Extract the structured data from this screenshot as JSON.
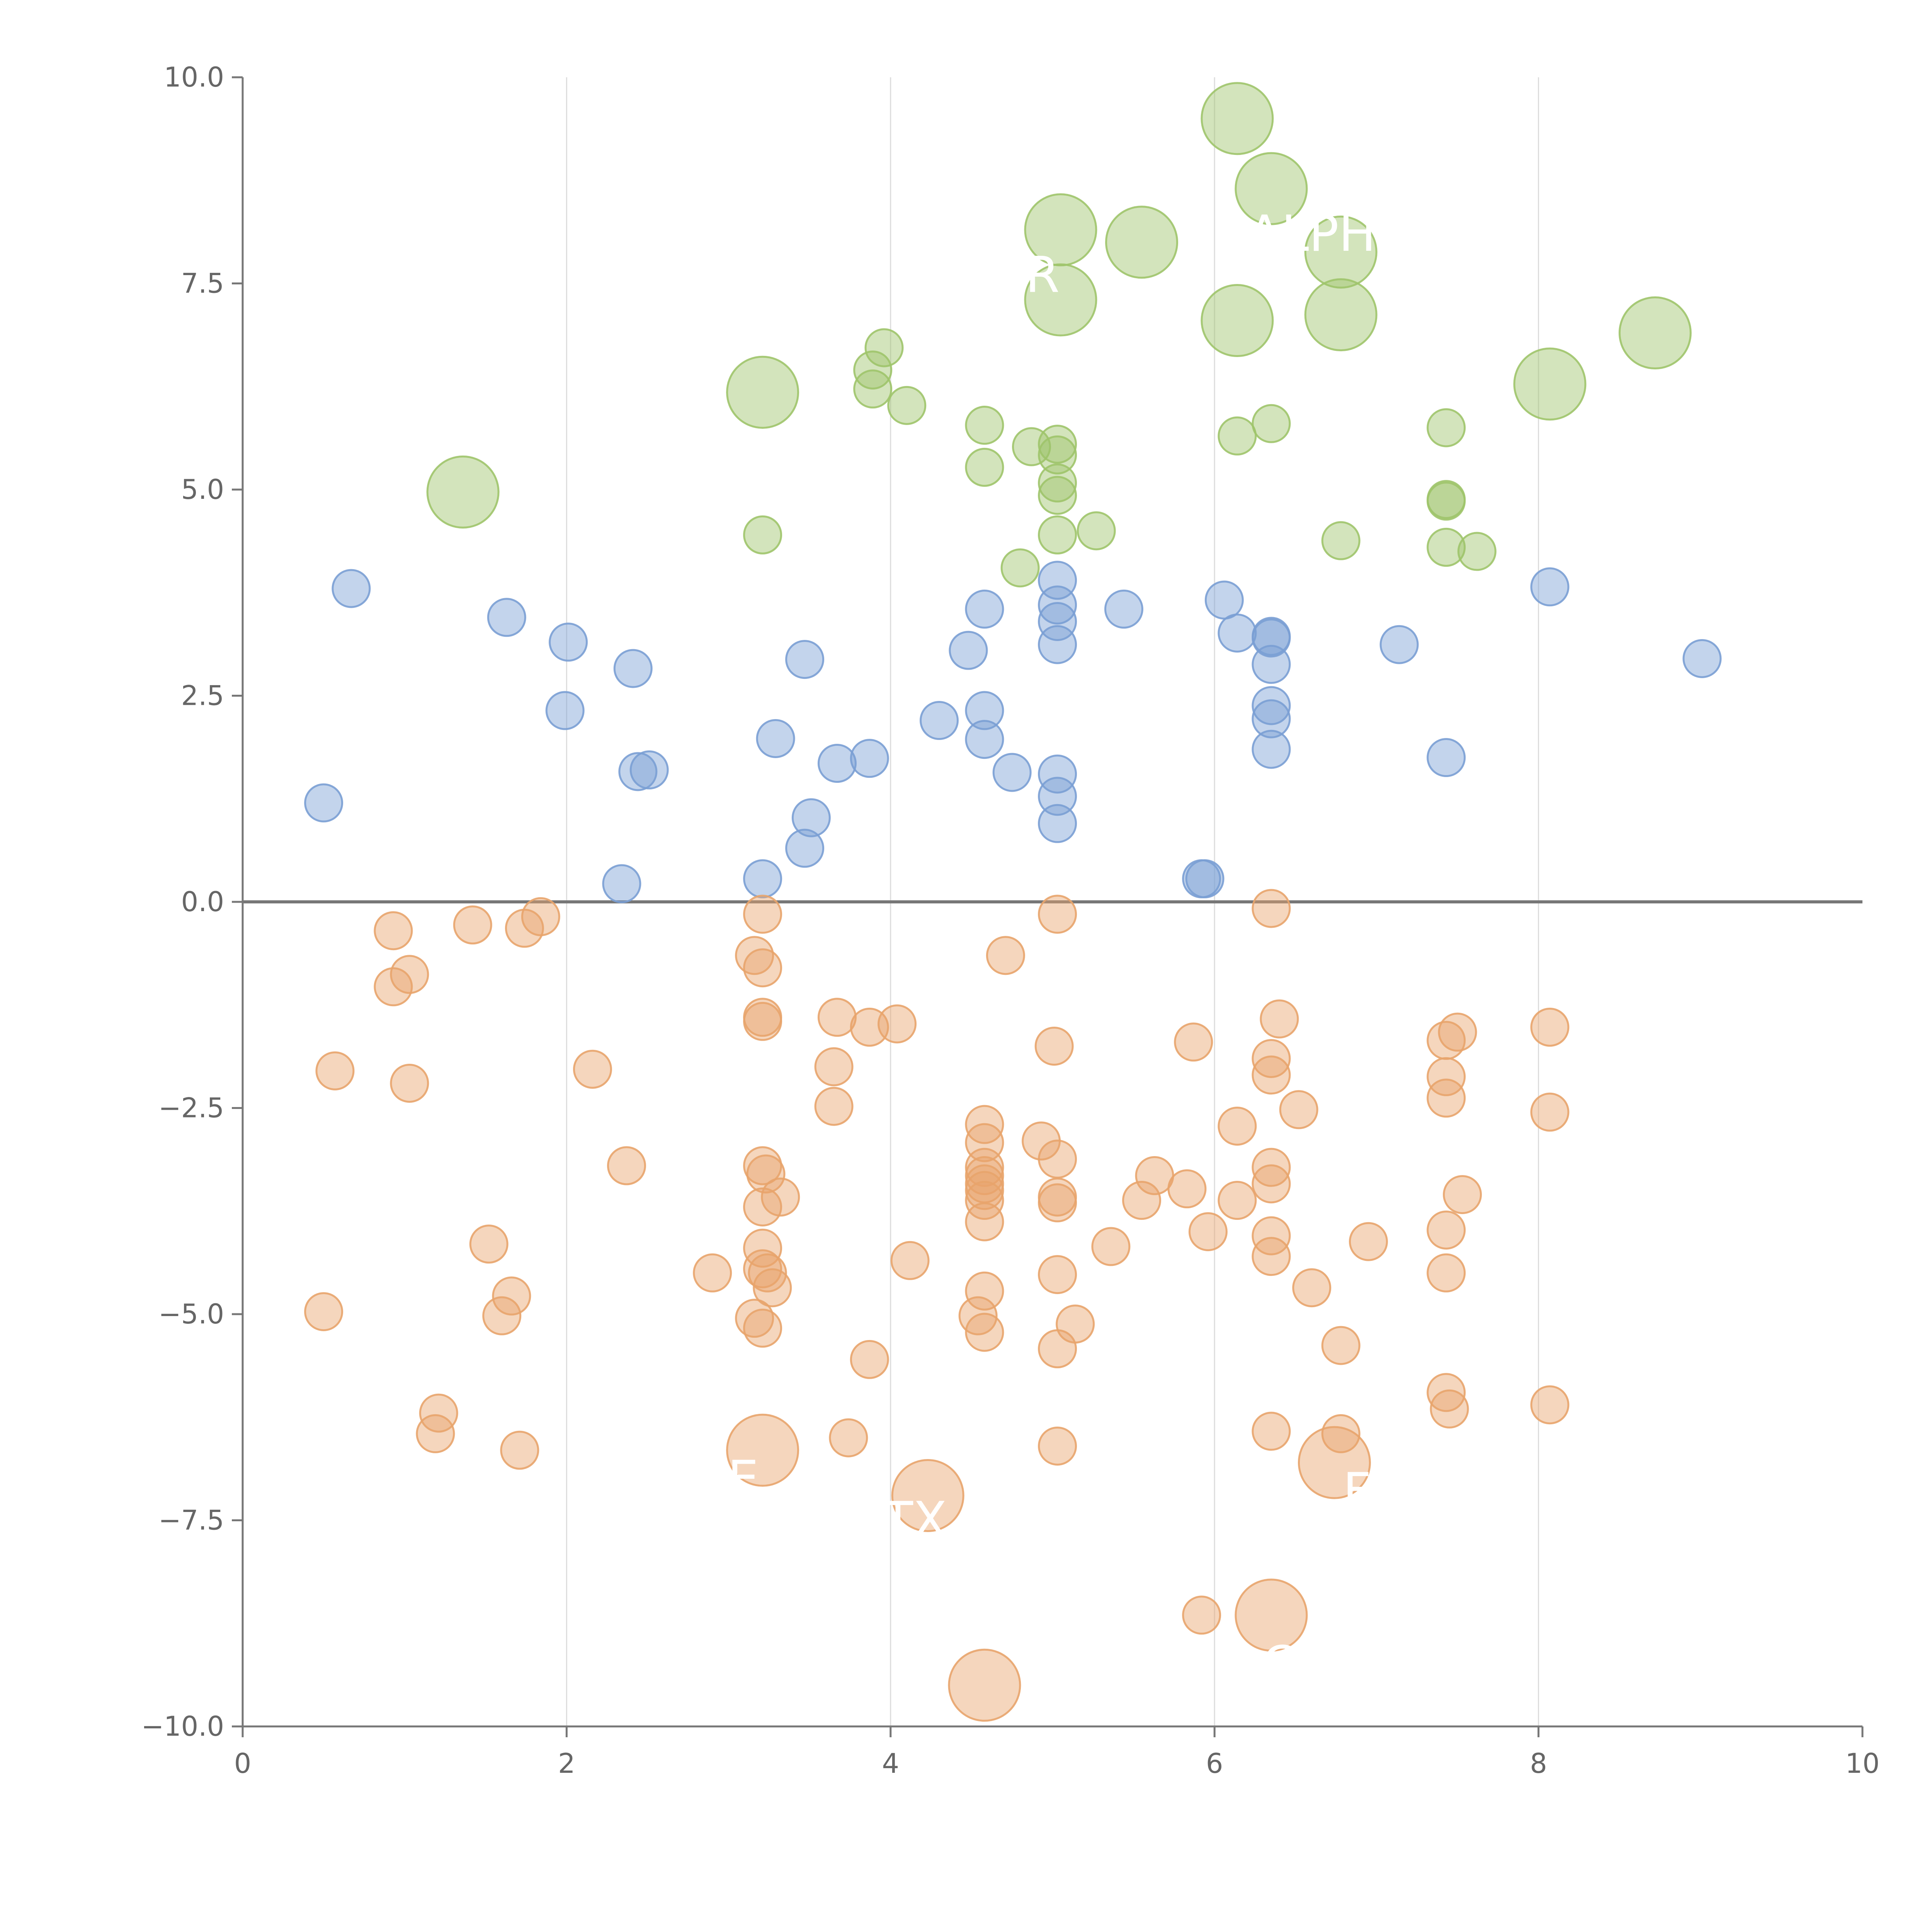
{
  "chart_data": {
    "type": "scatter",
    "title": "",
    "xlabel": "",
    "ylabel": "",
    "xlim": [
      0,
      10
    ],
    "ylim": [
      -10,
      10
    ],
    "x_ticks": [
      0,
      2,
      4,
      6,
      8,
      10
    ],
    "x_tick_labels": [
      "0",
      "2",
      "4",
      "6",
      "8",
      "10"
    ],
    "y_ticks": [
      -10,
      -7.5,
      -5,
      -2.5,
      0,
      2.5,
      5,
      7.5,
      10
    ],
    "y_tick_labels": [
      "−10.0",
      "−7.5",
      "−5.0",
      "−2.5",
      "0.0",
      "2.5",
      "5.0",
      "7.5",
      "10.0"
    ],
    "vertical_grid": true,
    "zero_line": true,
    "legend": "none",
    "series": [
      {
        "name": "green",
        "color": "#9ec46a",
        "points": [
          {
            "x": 6.14,
            "y": 9.5,
            "s": 2
          },
          {
            "x": 6.35,
            "y": 8.65,
            "s": 2
          },
          {
            "x": 5.05,
            "y": 8.15,
            "s": 2
          },
          {
            "x": 5.55,
            "y": 8.0,
            "s": 2
          },
          {
            "x": 6.78,
            "y": 7.88,
            "s": 2
          },
          {
            "x": 5.05,
            "y": 7.3,
            "s": 2
          },
          {
            "x": 6.14,
            "y": 7.05,
            "s": 2
          },
          {
            "x": 6.78,
            "y": 7.12,
            "s": 2
          },
          {
            "x": 8.72,
            "y": 6.9,
            "s": 2
          },
          {
            "x": 8.07,
            "y": 6.28,
            "s": 2
          },
          {
            "x": 3.21,
            "y": 6.18,
            "s": 2
          },
          {
            "x": 1.36,
            "y": 4.97,
            "s": 2
          },
          {
            "x": 3.96,
            "y": 6.72,
            "s": 1
          },
          {
            "x": 3.89,
            "y": 6.45,
            "s": 1
          },
          {
            "x": 3.89,
            "y": 6.22,
            "s": 1
          },
          {
            "x": 4.1,
            "y": 6.02,
            "s": 1
          },
          {
            "x": 4.58,
            "y": 5.78,
            "s": 1
          },
          {
            "x": 4.87,
            "y": 5.52,
            "s": 1
          },
          {
            "x": 5.03,
            "y": 5.55,
            "s": 1
          },
          {
            "x": 5.03,
            "y": 5.42,
            "s": 1
          },
          {
            "x": 4.58,
            "y": 5.27,
            "s": 1
          },
          {
            "x": 5.03,
            "y": 5.08,
            "s": 1
          },
          {
            "x": 5.03,
            "y": 4.93,
            "s": 1
          },
          {
            "x": 6.14,
            "y": 5.65,
            "s": 1
          },
          {
            "x": 6.35,
            "y": 5.8,
            "s": 1
          },
          {
            "x": 7.43,
            "y": 5.75,
            "s": 1
          },
          {
            "x": 7.43,
            "y": 4.88,
            "s": 1
          },
          {
            "x": 7.43,
            "y": 4.86,
            "s": 1
          },
          {
            "x": 7.43,
            "y": 4.3,
            "s": 1
          },
          {
            "x": 7.62,
            "y": 4.25,
            "s": 1
          },
          {
            "x": 6.78,
            "y": 4.38,
            "s": 1
          },
          {
            "x": 5.27,
            "y": 4.5,
            "s": 1
          },
          {
            "x": 5.03,
            "y": 4.45,
            "s": 1
          },
          {
            "x": 4.8,
            "y": 4.05,
            "s": 1
          },
          {
            "x": 3.21,
            "y": 4.45,
            "s": 1
          }
        ]
      },
      {
        "name": "blue",
        "color": "#7a9fd4",
        "points": [
          {
            "x": 0.67,
            "y": 3.8,
            "s": 1
          },
          {
            "x": 1.63,
            "y": 3.45,
            "s": 1
          },
          {
            "x": 2.01,
            "y": 3.15,
            "s": 1
          },
          {
            "x": 2.41,
            "y": 2.83,
            "s": 1
          },
          {
            "x": 1.99,
            "y": 2.32,
            "s": 1
          },
          {
            "x": 0.5,
            "y": 1.2,
            "s": 1
          },
          {
            "x": 2.44,
            "y": 1.58,
            "s": 1
          },
          {
            "x": 2.51,
            "y": 1.6,
            "s": 1
          },
          {
            "x": 2.34,
            "y": 0.22,
            "s": 1
          },
          {
            "x": 3.21,
            "y": 0.28,
            "s": 1
          },
          {
            "x": 3.29,
            "y": 1.98,
            "s": 1
          },
          {
            "x": 3.47,
            "y": 2.94,
            "s": 1
          },
          {
            "x": 3.51,
            "y": 1.02,
            "s": 1
          },
          {
            "x": 3.47,
            "y": 0.65,
            "s": 1
          },
          {
            "x": 3.67,
            "y": 1.68,
            "s": 1
          },
          {
            "x": 3.87,
            "y": 1.74,
            "s": 1
          },
          {
            "x": 4.3,
            "y": 2.2,
            "s": 1
          },
          {
            "x": 4.48,
            "y": 3.05,
            "s": 1
          },
          {
            "x": 4.58,
            "y": 3.55,
            "s": 1
          },
          {
            "x": 4.58,
            "y": 2.32,
            "s": 1
          },
          {
            "x": 4.58,
            "y": 1.97,
            "s": 1
          },
          {
            "x": 4.75,
            "y": 1.57,
            "s": 1
          },
          {
            "x": 5.03,
            "y": 3.9,
            "s": 1
          },
          {
            "x": 5.03,
            "y": 3.6,
            "s": 1
          },
          {
            "x": 5.03,
            "y": 3.4,
            "s": 1
          },
          {
            "x": 5.03,
            "y": 3.12,
            "s": 1
          },
          {
            "x": 5.03,
            "y": 1.55,
            "s": 1
          },
          {
            "x": 5.03,
            "y": 1.28,
            "s": 1
          },
          {
            "x": 5.03,
            "y": 0.95,
            "s": 1
          },
          {
            "x": 5.44,
            "y": 3.55,
            "s": 1
          },
          {
            "x": 6.06,
            "y": 3.66,
            "s": 1
          },
          {
            "x": 6.14,
            "y": 3.26,
            "s": 1
          },
          {
            "x": 6.35,
            "y": 3.22,
            "s": 1
          },
          {
            "x": 6.35,
            "y": 3.2,
            "s": 1
          },
          {
            "x": 6.35,
            "y": 2.88,
            "s": 1
          },
          {
            "x": 6.35,
            "y": 2.38,
            "s": 1
          },
          {
            "x": 6.35,
            "y": 2.22,
            "s": 1
          },
          {
            "x": 6.35,
            "y": 1.85,
            "s": 1
          },
          {
            "x": 5.92,
            "y": 0.28,
            "s": 1
          },
          {
            "x": 5.94,
            "y": 0.28,
            "s": 1
          },
          {
            "x": 7.14,
            "y": 3.12,
            "s": 1
          },
          {
            "x": 7.43,
            "y": 1.75,
            "s": 1
          },
          {
            "x": 8.07,
            "y": 3.82,
            "s": 1
          },
          {
            "x": 9.01,
            "y": 2.95,
            "s": 1
          }
        ]
      },
      {
        "name": "orange",
        "color": "#e8a46c",
        "points": [
          {
            "x": 0.93,
            "y": -0.35,
            "s": 1
          },
          {
            "x": 1.42,
            "y": -0.28,
            "s": 1
          },
          {
            "x": 1.74,
            "y": -0.32,
            "s": 1
          },
          {
            "x": 1.84,
            "y": -0.18,
            "s": 1
          },
          {
            "x": 0.93,
            "y": -1.03,
            "s": 1
          },
          {
            "x": 1.03,
            "y": -0.88,
            "s": 1
          },
          {
            "x": 0.57,
            "y": -2.05,
            "s": 1
          },
          {
            "x": 1.03,
            "y": -2.2,
            "s": 1
          },
          {
            "x": 2.16,
            "y": -2.03,
            "s": 1
          },
          {
            "x": 2.37,
            "y": -3.2,
            "s": 1
          },
          {
            "x": 1.52,
            "y": -4.15,
            "s": 1
          },
          {
            "x": 0.5,
            "y": -4.97,
            "s": 1
          },
          {
            "x": 1.66,
            "y": -4.78,
            "s": 1
          },
          {
            "x": 1.6,
            "y": -5.02,
            "s": 1
          },
          {
            "x": 1.21,
            "y": -6.2,
            "s": 1
          },
          {
            "x": 1.19,
            "y": -6.45,
            "s": 1
          },
          {
            "x": 1.71,
            "y": -6.65,
            "s": 1
          },
          {
            "x": 2.9,
            "y": -4.5,
            "s": 1
          },
          {
            "x": 3.21,
            "y": -0.15,
            "s": 1
          },
          {
            "x": 3.16,
            "y": -0.65,
            "s": 1
          },
          {
            "x": 3.21,
            "y": -0.8,
            "s": 1
          },
          {
            "x": 3.21,
            "y": -1.4,
            "s": 1
          },
          {
            "x": 3.21,
            "y": -1.45,
            "s": 1
          },
          {
            "x": 3.21,
            "y": -3.2,
            "s": 1
          },
          {
            "x": 3.23,
            "y": -3.3,
            "s": 1
          },
          {
            "x": 3.32,
            "y": -3.58,
            "s": 1
          },
          {
            "x": 3.21,
            "y": -3.7,
            "s": 1
          },
          {
            "x": 3.21,
            "y": -4.2,
            "s": 1
          },
          {
            "x": 3.21,
            "y": -4.45,
            "s": 1
          },
          {
            "x": 3.24,
            "y": -4.5,
            "s": 1
          },
          {
            "x": 3.27,
            "y": -4.68,
            "s": 1
          },
          {
            "x": 3.16,
            "y": -5.05,
            "s": 1
          },
          {
            "x": 3.21,
            "y": -5.17,
            "s": 1
          },
          {
            "x": 3.67,
            "y": -1.4,
            "s": 1
          },
          {
            "x": 3.87,
            "y": -1.52,
            "s": 1
          },
          {
            "x": 4.04,
            "y": -1.48,
            "s": 1
          },
          {
            "x": 3.65,
            "y": -2.0,
            "s": 1
          },
          {
            "x": 3.65,
            "y": -2.48,
            "s": 1
          },
          {
            "x": 3.74,
            "y": -6.5,
            "s": 1
          },
          {
            "x": 3.87,
            "y": -5.55,
            "s": 1
          },
          {
            "x": 4.12,
            "y": -4.35,
            "s": 1
          },
          {
            "x": 4.71,
            "y": -0.65,
            "s": 1
          },
          {
            "x": 4.58,
            "y": -2.7,
            "s": 1
          },
          {
            "x": 4.58,
            "y": -2.92,
            "s": 1
          },
          {
            "x": 4.58,
            "y": -3.22,
            "s": 1
          },
          {
            "x": 4.58,
            "y": -3.32,
            "s": 1
          },
          {
            "x": 4.58,
            "y": -3.42,
            "s": 1
          },
          {
            "x": 4.58,
            "y": -3.5,
            "s": 1
          },
          {
            "x": 4.58,
            "y": -3.62,
            "s": 1
          },
          {
            "x": 4.58,
            "y": -3.88,
            "s": 1
          },
          {
            "x": 4.58,
            "y": -4.72,
            "s": 1
          },
          {
            "x": 4.54,
            "y": -5.02,
            "s": 1
          },
          {
            "x": 4.58,
            "y": -5.22,
            "s": 1
          },
          {
            "x": 4.93,
            "y": -2.9,
            "s": 1
          },
          {
            "x": 5.03,
            "y": -0.15,
            "s": 1
          },
          {
            "x": 5.01,
            "y": -1.75,
            "s": 1
          },
          {
            "x": 5.03,
            "y": -3.12,
            "s": 1
          },
          {
            "x": 5.03,
            "y": -3.58,
            "s": 1
          },
          {
            "x": 5.03,
            "y": -3.65,
            "s": 1
          },
          {
            "x": 5.03,
            "y": -4.52,
            "s": 1
          },
          {
            "x": 5.03,
            "y": -5.42,
            "s": 1
          },
          {
            "x": 5.03,
            "y": -6.6,
            "s": 1
          },
          {
            "x": 5.14,
            "y": -5.12,
            "s": 1
          },
          {
            "x": 5.36,
            "y": -4.18,
            "s": 1
          },
          {
            "x": 5.55,
            "y": -3.62,
            "s": 1
          },
          {
            "x": 5.63,
            "y": -3.32,
            "s": 1
          },
          {
            "x": 5.83,
            "y": -3.48,
            "s": 1
          },
          {
            "x": 5.87,
            "y": -1.7,
            "s": 1
          },
          {
            "x": 5.96,
            "y": -4.0,
            "s": 1
          },
          {
            "x": 5.92,
            "y": -8.65,
            "s": 1
          },
          {
            "x": 6.14,
            "y": -2.72,
            "s": 1
          },
          {
            "x": 6.14,
            "y": -3.62,
            "s": 1
          },
          {
            "x": 6.35,
            "y": -0.08,
            "s": 1
          },
          {
            "x": 6.4,
            "y": -1.42,
            "s": 1
          },
          {
            "x": 6.35,
            "y": -1.9,
            "s": 1
          },
          {
            "x": 6.35,
            "y": -2.1,
            "s": 1
          },
          {
            "x": 6.35,
            "y": -3.22,
            "s": 1
          },
          {
            "x": 6.35,
            "y": -3.42,
            "s": 1
          },
          {
            "x": 6.35,
            "y": -4.05,
            "s": 1
          },
          {
            "x": 6.35,
            "y": -4.3,
            "s": 1
          },
          {
            "x": 6.35,
            "y": -6.42,
            "s": 1
          },
          {
            "x": 6.52,
            "y": -2.52,
            "s": 1
          },
          {
            "x": 6.6,
            "y": -4.68,
            "s": 1
          },
          {
            "x": 6.78,
            "y": -5.38,
            "s": 1
          },
          {
            "x": 6.78,
            "y": -6.45,
            "s": 1
          },
          {
            "x": 6.95,
            "y": -4.12,
            "s": 1
          },
          {
            "x": 7.43,
            "y": -1.68,
            "s": 1
          },
          {
            "x": 7.5,
            "y": -1.58,
            "s": 1
          },
          {
            "x": 7.43,
            "y": -2.12,
            "s": 1
          },
          {
            "x": 7.43,
            "y": -2.38,
            "s": 1
          },
          {
            "x": 7.43,
            "y": -3.98,
            "s": 1
          },
          {
            "x": 7.43,
            "y": -4.5,
            "s": 1
          },
          {
            "x": 7.43,
            "y": -5.95,
            "s": 1
          },
          {
            "x": 7.45,
            "y": -6.15,
            "s": 1
          },
          {
            "x": 7.53,
            "y": -3.55,
            "s": 1
          },
          {
            "x": 8.07,
            "y": -1.52,
            "s": 1
          },
          {
            "x": 8.07,
            "y": -2.55,
            "s": 1
          },
          {
            "x": 8.07,
            "y": -6.1,
            "s": 1
          },
          {
            "x": 3.21,
            "y": -6.65,
            "s": 2
          },
          {
            "x": 4.23,
            "y": -7.2,
            "s": 2
          },
          {
            "x": 6.74,
            "y": -6.8,
            "s": 2
          },
          {
            "x": 6.35,
            "y": -8.65,
            "s": 2
          },
          {
            "x": 4.58,
            "y": -9.5,
            "s": 2
          }
        ]
      }
    ],
    "labels": [
      {
        "text": "ALPH",
        "x": 6.6,
        "y": 8.1
      },
      {
        "text": "DR",
        "x": 4.82,
        "y": 7.6
      },
      {
        "text": "E",
        "x": 3.09,
        "y": -7.0
      },
      {
        "text": "TX",
        "x": 4.15,
        "y": -7.5
      },
      {
        "text": "F",
        "x": 6.88,
        "y": -7.15
      },
      {
        "text": "C",
        "x": 6.4,
        "y": -9.25
      }
    ]
  }
}
